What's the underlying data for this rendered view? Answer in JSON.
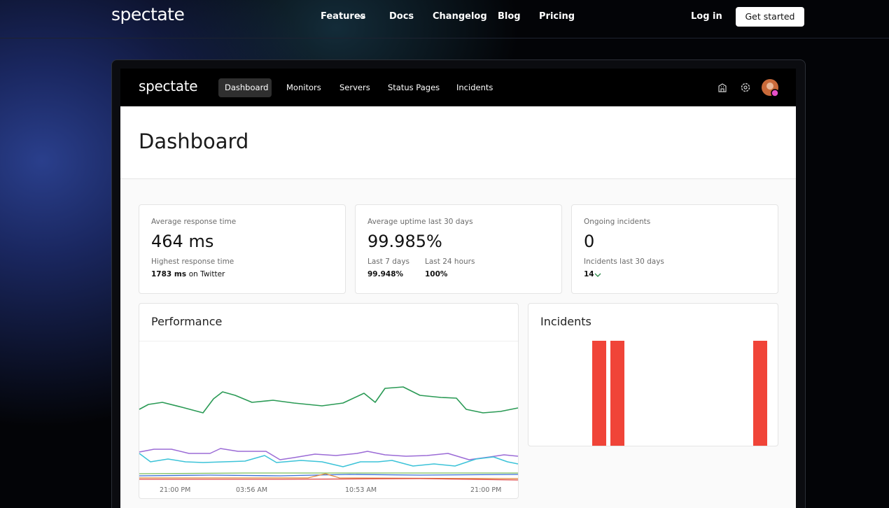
{
  "nav": {
    "logo": "spectate",
    "links": [
      "Features",
      "Docs",
      "Changelog",
      "Blog",
      "Pricing"
    ],
    "login": "Log in",
    "cta": "Get started"
  },
  "app": {
    "logo": "spectate",
    "tabs": [
      "Dashboard",
      "Monitors",
      "Servers",
      "Status Pages",
      "Incidents"
    ]
  },
  "page_title": "Dashboard",
  "cards": [
    {
      "label": "Average response time",
      "value": "464 ms",
      "sub_label": "Highest response time",
      "detail_value": "1783 ms",
      "detail_suffix": "on Twitter"
    },
    {
      "label": "Average uptime last 30 days",
      "value": "99.985%",
      "stats": [
        {
          "label": "Last 7 days",
          "value": "99.948%"
        },
        {
          "label": "Last 24 hours",
          "value": "100%"
        }
      ]
    },
    {
      "label": "Ongoing incidents",
      "value": "0",
      "sub_label": "Incidents last 30 days",
      "detail_value": "14"
    }
  ],
  "performance": {
    "title": "Performance",
    "x_labels": [
      "21:00 PM",
      "03:56 AM",
      "10:53 AM",
      "21:00 PM"
    ]
  },
  "incidents": {
    "title": "Incidents"
  }
}
